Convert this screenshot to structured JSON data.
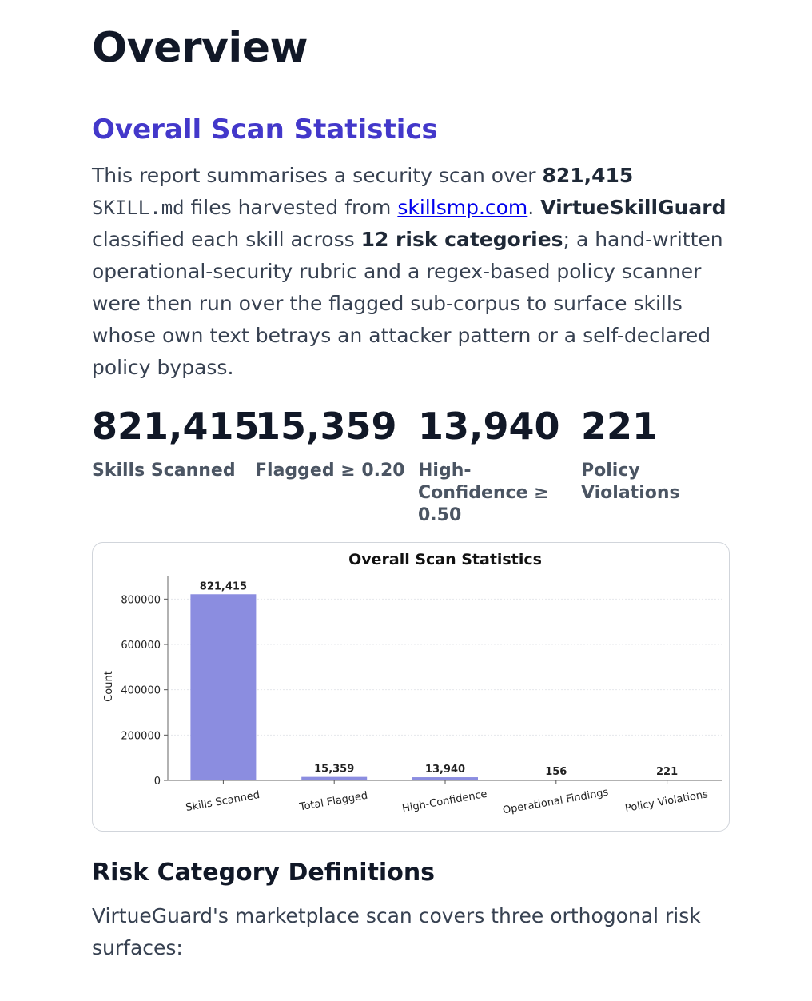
{
  "page": {
    "title": "Overview",
    "section_title": "Overall Scan Statistics",
    "intro": {
      "t1": "This report summarises a security scan over ",
      "b1": "821,415",
      "code1": "SKILL.md",
      "t2": " files harvested from ",
      "link": "skillsmp.com",
      "t3": ". ",
      "b2": "VirtueSkillGuard",
      "t4": " classified each skill across ",
      "b3": "12 risk categories",
      "t5": "; a hand-written operational-security rubric and a regex-based policy scanner were then run over the flagged sub-corpus to surface skills whose own text betrays an attacker pattern or a self-declared policy bypass."
    },
    "stats": [
      {
        "value": "821,415",
        "label": "Skills Scanned"
      },
      {
        "value": "15,359",
        "label": "Flagged ≥ 0.20"
      },
      {
        "value": "13,940",
        "label": "High-Confidence ≥ 0.50"
      },
      {
        "value": "221",
        "label": "Policy Violations"
      }
    ],
    "subsection_title": "Risk Category Definitions",
    "outro": "VirtueGuard's marketplace scan covers three orthogonal risk surfaces:"
  },
  "colors": {
    "bar": "#8b8de0",
    "accent": "#4338ca"
  },
  "chart_data": {
    "type": "bar",
    "title": "Overall Scan Statistics",
    "xlabel": "",
    "ylabel": "Count",
    "categories": [
      "Skills Scanned",
      "Total Flagged",
      "High-Confidence",
      "Operational Findings",
      "Policy Violations"
    ],
    "values": [
      821415,
      15359,
      13940,
      156,
      221
    ],
    "data_labels": [
      "821,415",
      "15,359",
      "13,940",
      "156",
      "221"
    ],
    "ylim": [
      0,
      900000
    ],
    "yticks": [
      0,
      200000,
      400000,
      600000,
      800000
    ],
    "ytick_labels": [
      "0",
      "200000",
      "400000",
      "600000",
      "800000"
    ],
    "grid": true
  }
}
